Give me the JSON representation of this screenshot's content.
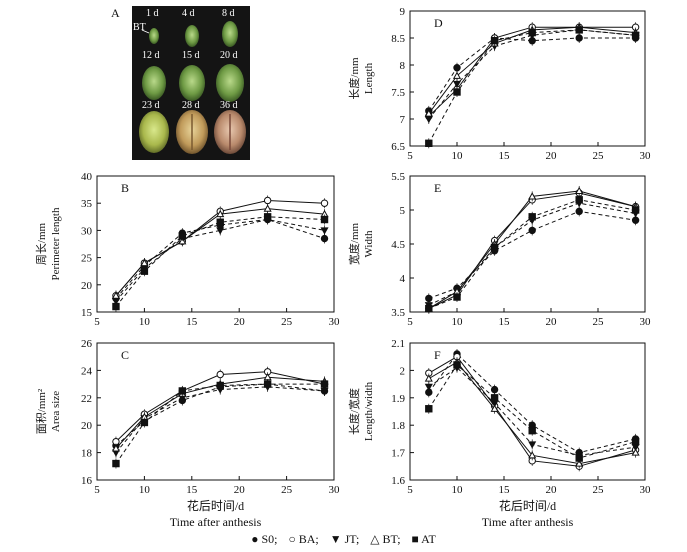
{
  "figure": {
    "photo_panel": {
      "letter": "A",
      "stage_labels": [
        "1 d",
        "4 d",
        "8 d",
        "12 d",
        "15 d",
        "20 d",
        "23 d",
        "28 d",
        "36 d"
      ],
      "structure_label": "BT"
    },
    "x_axis_cn": "花后时间/d",
    "x_axis_en": "Time after anthesis",
    "legend": [
      {
        "symbol": "●",
        "label": "S0;"
      },
      {
        "symbol": "○",
        "label": "BA;"
      },
      {
        "symbol": "▼",
        "label": "JT;"
      },
      {
        "symbol": "△",
        "label": "BT;"
      },
      {
        "symbol": "■",
        "label": "AT"
      }
    ]
  },
  "chart_data": [
    {
      "id": "B",
      "type": "line",
      "letter": "B",
      "ylabel_cn": "周长/mm",
      "ylabel_en": "Perimeter length",
      "xlabel": "",
      "xlim": [
        5,
        30
      ],
      "ylim": [
        15,
        40
      ],
      "xticks": [
        5,
        10,
        15,
        20,
        25,
        30
      ],
      "yticks": [
        15,
        20,
        25,
        30,
        35,
        40
      ],
      "x": [
        7,
        10,
        14,
        18,
        23,
        29
      ],
      "series": [
        {
          "name": "S0",
          "marker": "circle-filled",
          "dash": true,
          "values": [
            17.5,
            23.5,
            29.5,
            31.0,
            32.0,
            28.5
          ]
        },
        {
          "name": "BA",
          "marker": "circle-open",
          "dash": false,
          "values": [
            18.0,
            24.0,
            28.0,
            33.5,
            35.5,
            35.0
          ]
        },
        {
          "name": "JT",
          "marker": "triangle-down",
          "dash": true,
          "values": [
            17.0,
            23.0,
            28.5,
            30.0,
            32.0,
            30.0
          ]
        },
        {
          "name": "BT",
          "marker": "triangle-open",
          "dash": false,
          "values": [
            18.0,
            24.0,
            28.0,
            33.0,
            34.0,
            33.0
          ]
        },
        {
          "name": "AT",
          "marker": "square-filled",
          "dash": true,
          "values": [
            16.0,
            22.5,
            29.0,
            31.5,
            32.5,
            32.0
          ]
        }
      ]
    },
    {
      "id": "C",
      "type": "line",
      "letter": "C",
      "ylabel_cn": "面积/mm²",
      "ylabel_en": "Area size",
      "xlabel": "",
      "xlim": [
        5,
        30
      ],
      "ylim": [
        16,
        26
      ],
      "xticks": [
        5,
        10,
        15,
        20,
        25,
        30
      ],
      "yticks": [
        16,
        18,
        20,
        22,
        24,
        26
      ],
      "x": [
        7,
        10,
        14,
        18,
        23,
        29
      ],
      "series": [
        {
          "name": "S0",
          "marker": "circle-filled",
          "dash": true,
          "values": [
            18.5,
            20.3,
            21.8,
            22.8,
            23.0,
            22.5
          ]
        },
        {
          "name": "BA",
          "marker": "circle-open",
          "dash": false,
          "values": [
            18.8,
            20.8,
            22.5,
            23.7,
            23.9,
            23.0
          ]
        },
        {
          "name": "JT",
          "marker": "triangle-down",
          "dash": true,
          "values": [
            18.0,
            20.5,
            22.0,
            22.6,
            22.8,
            22.5
          ]
        },
        {
          "name": "BT",
          "marker": "triangle-open",
          "dash": false,
          "values": [
            18.3,
            20.6,
            22.3,
            23.0,
            23.5,
            23.2
          ]
        },
        {
          "name": "AT",
          "marker": "square-filled",
          "dash": true,
          "values": [
            17.2,
            20.2,
            22.5,
            22.9,
            23.0,
            23.0
          ]
        }
      ]
    },
    {
      "id": "D",
      "type": "line",
      "letter": "D",
      "ylabel_cn": "长度/mm",
      "ylabel_en": "Length",
      "xlabel": "",
      "xlim": [
        5,
        30
      ],
      "ylim": [
        6.5,
        9.0
      ],
      "xticks": [
        5,
        10,
        15,
        20,
        25,
        30
      ],
      "yticks": [
        6.5,
        7.0,
        7.5,
        8.0,
        8.5,
        9.0
      ],
      "x": [
        7,
        10,
        14,
        18,
        23,
        29
      ],
      "series": [
        {
          "name": "S0",
          "marker": "circle-filled",
          "dash": true,
          "values": [
            7.15,
            7.95,
            8.5,
            8.45,
            8.5,
            8.5
          ]
        },
        {
          "name": "BA",
          "marker": "circle-open",
          "dash": false,
          "values": [
            7.05,
            7.55,
            8.5,
            8.7,
            8.7,
            8.7
          ]
        },
        {
          "name": "JT",
          "marker": "triangle-down",
          "dash": true,
          "values": [
            7.0,
            7.65,
            8.35,
            8.55,
            8.65,
            8.55
          ]
        },
        {
          "name": "BT",
          "marker": "triangle-open",
          "dash": false,
          "values": [
            7.1,
            7.8,
            8.4,
            8.65,
            8.7,
            8.6
          ]
        },
        {
          "name": "AT",
          "marker": "square-filled",
          "dash": true,
          "values": [
            6.55,
            7.5,
            8.45,
            8.6,
            8.65,
            8.55
          ]
        }
      ]
    },
    {
      "id": "E",
      "type": "line",
      "letter": "E",
      "ylabel_cn": "宽度/mm",
      "ylabel_en": "Width",
      "xlabel": "",
      "xlim": [
        5,
        30
      ],
      "ylim": [
        3.5,
        5.5
      ],
      "xticks": [
        5,
        10,
        15,
        20,
        25,
        30
      ],
      "yticks": [
        3.5,
        4.0,
        4.5,
        5.0,
        5.5
      ],
      "x": [
        7,
        10,
        14,
        18,
        23,
        29
      ],
      "series": [
        {
          "name": "S0",
          "marker": "circle-filled",
          "dash": true,
          "values": [
            3.7,
            3.85,
            4.4,
            4.7,
            4.98,
            4.85
          ]
        },
        {
          "name": "BA",
          "marker": "circle-open",
          "dash": false,
          "values": [
            3.55,
            3.75,
            4.55,
            5.15,
            5.25,
            5.05
          ]
        },
        {
          "name": "JT",
          "marker": "triangle-down",
          "dash": true,
          "values": [
            3.6,
            3.8,
            4.45,
            4.85,
            5.1,
            4.95
          ]
        },
        {
          "name": "BT",
          "marker": "triangle-open",
          "dash": false,
          "values": [
            3.55,
            3.8,
            4.5,
            5.2,
            5.28,
            5.05
          ]
        },
        {
          "name": "AT",
          "marker": "square-filled",
          "dash": true,
          "values": [
            3.55,
            3.72,
            4.45,
            4.9,
            5.15,
            5.0
          ]
        }
      ]
    },
    {
      "id": "F",
      "type": "line",
      "letter": "F",
      "ylabel_cn": "长度/宽度",
      "ylabel_en": "Length/width",
      "xlabel": "",
      "xlim": [
        5,
        30
      ],
      "ylim": [
        1.6,
        2.1
      ],
      "xticks": [
        5,
        10,
        15,
        20,
        25,
        30
      ],
      "yticks": [
        1.6,
        1.7,
        1.8,
        1.9,
        2.0,
        2.1
      ],
      "x": [
        7,
        10,
        14,
        18,
        23,
        29
      ],
      "series": [
        {
          "name": "S0",
          "marker": "circle-filled",
          "dash": true,
          "values": [
            1.92,
            2.06,
            1.93,
            1.8,
            1.7,
            1.75
          ]
        },
        {
          "name": "BA",
          "marker": "circle-open",
          "dash": false,
          "values": [
            1.99,
            2.05,
            1.87,
            1.67,
            1.65,
            1.71
          ]
        },
        {
          "name": "JT",
          "marker": "triangle-down",
          "dash": true,
          "values": [
            1.94,
            2.01,
            1.88,
            1.73,
            1.69,
            1.72
          ]
        },
        {
          "name": "BT",
          "marker": "triangle-open",
          "dash": false,
          "values": [
            1.97,
            2.03,
            1.86,
            1.69,
            1.66,
            1.7
          ]
        },
        {
          "name": "AT",
          "marker": "square-filled",
          "dash": true,
          "values": [
            1.86,
            2.02,
            1.9,
            1.78,
            1.68,
            1.74
          ]
        }
      ]
    }
  ]
}
